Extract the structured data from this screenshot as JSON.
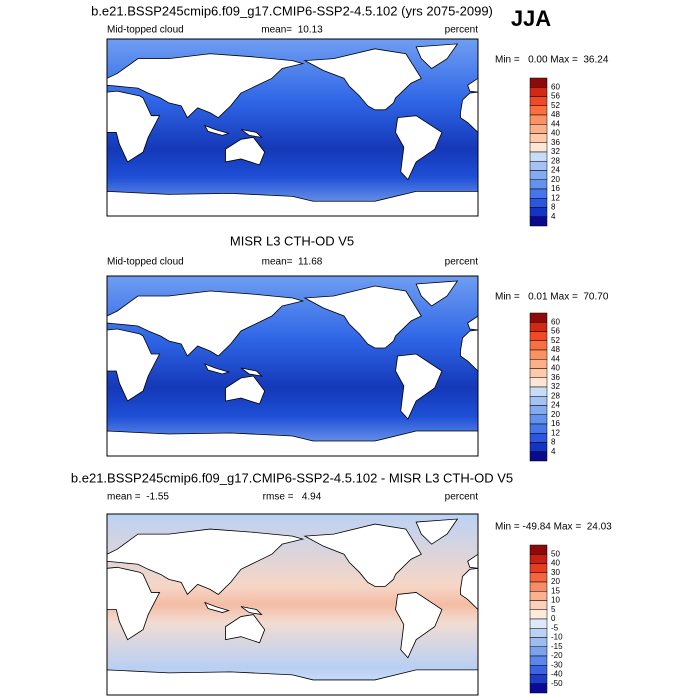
{
  "header": {
    "season": "JJA"
  },
  "panels": [
    {
      "title": "b.e21.BSSP245cmip6.f09_g17.CMIP6-SSP2-4.5.102 (yrs 2075-2099)",
      "left": "Mid-topped cloud",
      "center": "mean=  10.13",
      "right": "percent",
      "range": "Min =   0.00 Max =  36.24",
      "colorbar": {
        "labels": [
          60,
          56,
          52,
          48,
          44,
          40,
          36,
          32,
          28,
          24,
          20,
          16,
          12,
          8,
          4
        ],
        "colors": [
          "#8c0a0a",
          "#d22814",
          "#f04a24",
          "#f87040",
          "#fa9264",
          "#fcb08a",
          "#fdcaaa",
          "#fde6d4",
          "#c8dcf8",
          "#a4c2f2",
          "#84aaf0",
          "#6490ee",
          "#4676ea",
          "#2a56e0",
          "#1434c4",
          "#0a0a8c"
        ]
      }
    },
    {
      "title": "MISR L3 CTH-OD V5",
      "left": "Mid-topped cloud",
      "center": "mean=  11.68",
      "right": "percent",
      "range": "Min =   0.01 Max =  70.70",
      "colorbar": {
        "labels": [
          60,
          56,
          52,
          48,
          44,
          40,
          36,
          32,
          28,
          24,
          20,
          16,
          12,
          8,
          4
        ],
        "colors": [
          "#8c0a0a",
          "#d22814",
          "#f04a24",
          "#f87040",
          "#fa9264",
          "#fcb08a",
          "#fdcaaa",
          "#fde6d4",
          "#c8dcf8",
          "#a4c2f2",
          "#84aaf0",
          "#6490ee",
          "#4676ea",
          "#2a56e0",
          "#1434c4",
          "#0a0a8c"
        ]
      }
    },
    {
      "title": "b.e21.BSSP245cmip6.f09_g17.CMIP6-SSP2-4.5.102 - MISR L3 CTH-OD V5",
      "left": "mean =  -1.55",
      "center": "rmse =   4.94",
      "right": "percent",
      "range": "Min = -49.84 Max =  24.03",
      "colorbar": {
        "labels": [
          50,
          40,
          30,
          20,
          15,
          10,
          5,
          0,
          -5,
          -10,
          -15,
          -20,
          -30,
          -40,
          -50
        ],
        "colors": [
          "#8c0a0a",
          "#c81e14",
          "#e63c22",
          "#f46640",
          "#f88c64",
          "#fbb090",
          "#fdd0b8",
          "#feeadc",
          "#dde8f8",
          "#bcd2f4",
          "#9cbcf2",
          "#7ca2ee",
          "#5c86ea",
          "#3c64e0",
          "#1e3cc8",
          "#0a0a96"
        ]
      }
    }
  ]
}
